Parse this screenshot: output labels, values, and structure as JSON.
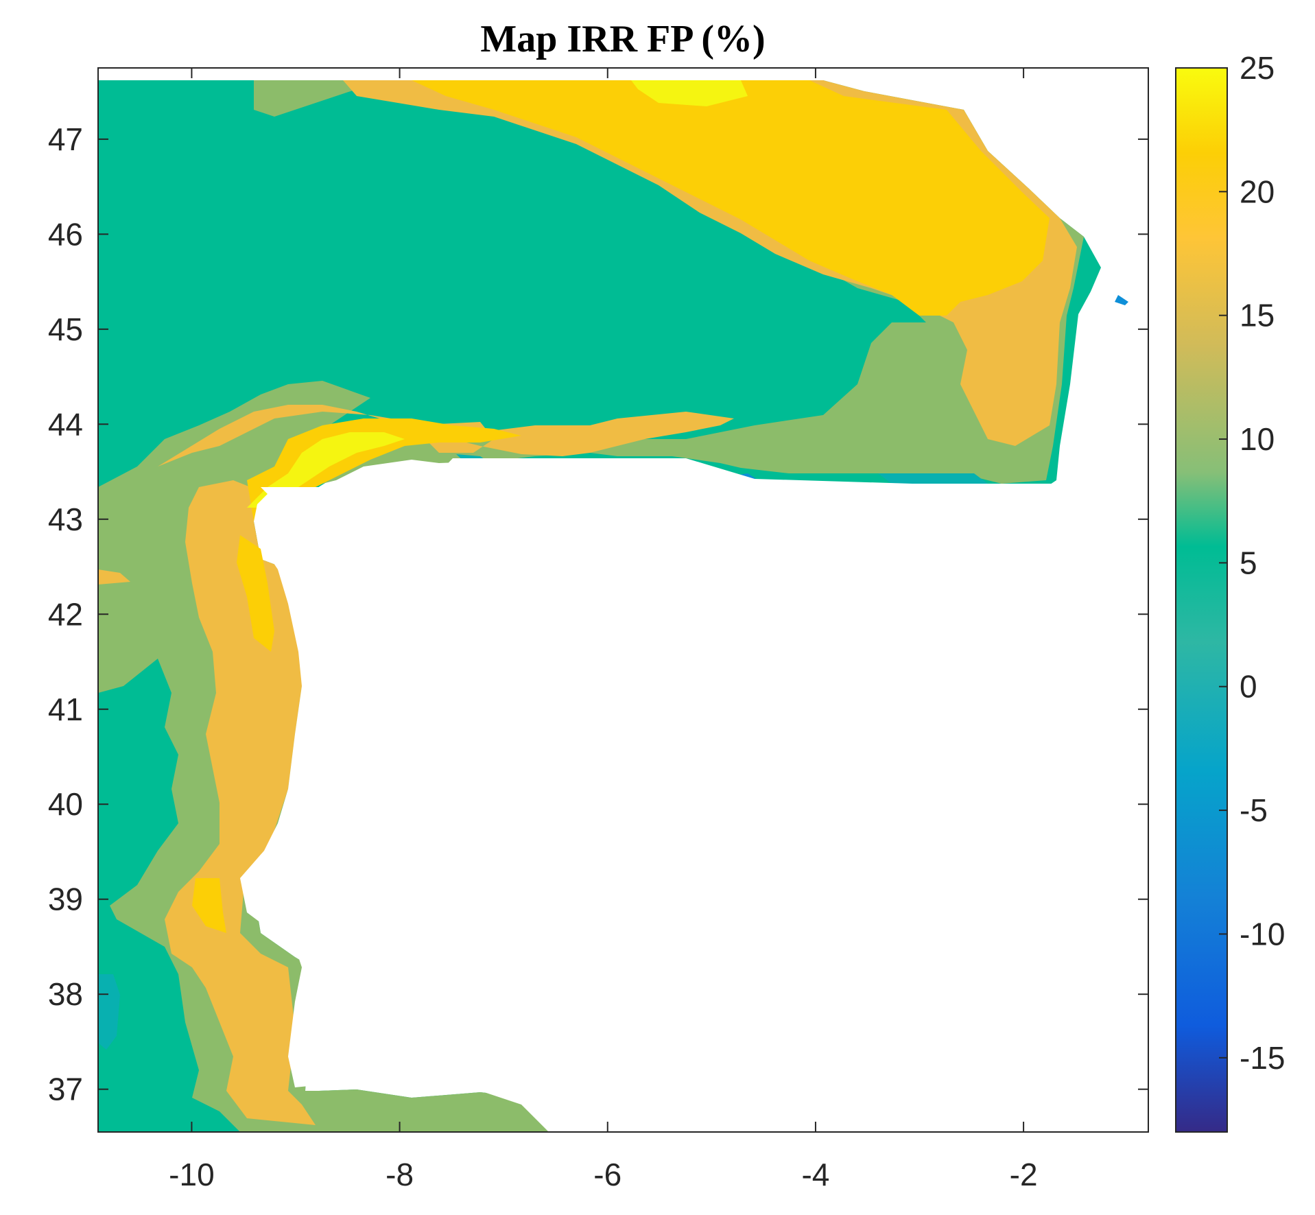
{
  "chart_data": {
    "type": "heatmap",
    "subtype": "filled-contour-map",
    "title": "Map IRR FP (%)",
    "xlabel": "",
    "ylabel": "",
    "xlim": [
      -10.9,
      -0.8
    ],
    "ylim": [
      36.55,
      47.75
    ],
    "xticks": [
      -10,
      -8,
      -6,
      -4,
      -2
    ],
    "yticks": [
      37,
      38,
      39,
      40,
      41,
      42,
      43,
      44,
      45,
      46,
      47
    ],
    "colorbar": {
      "range": [
        -18,
        25
      ],
      "ticks": [
        25,
        20,
        15,
        10,
        5,
        0,
        -5,
        -10,
        -15
      ],
      "colormap": "parula",
      "placement": "right"
    },
    "grid": false,
    "levels": [
      {
        "value": 3,
        "color": "#00bc94"
      },
      {
        "value": 10,
        "color": "#8cbc6a"
      },
      {
        "value": 16,
        "color": "#f0bc44"
      },
      {
        "value": 20,
        "color": "#fccf06"
      },
      {
        "value": 24,
        "color": "#f5f511"
      },
      {
        "value": 1,
        "color": "#08b0b0"
      },
      {
        "value": -6,
        "color": "#0e8fd8"
      }
    ],
    "colors": {
      "no_data": "#ffffff",
      "axis": "#262626"
    }
  }
}
